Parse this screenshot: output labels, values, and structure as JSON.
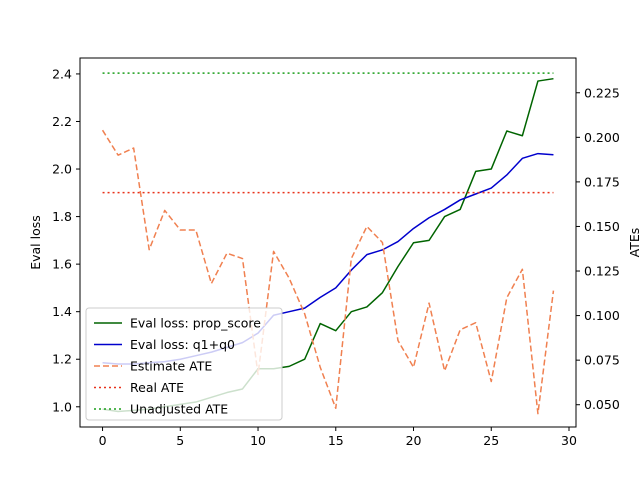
{
  "chart_data": {
    "type": "line",
    "x": [
      0,
      1,
      2,
      3,
      4,
      5,
      6,
      7,
      8,
      9,
      10,
      11,
      12,
      13,
      14,
      15,
      16,
      17,
      18,
      19,
      20,
      21,
      22,
      23,
      24,
      25,
      26,
      27,
      28,
      29
    ],
    "axes": {
      "x": {
        "ticks": [
          0,
          5,
          10,
          15,
          20,
          25,
          30
        ],
        "lim": [
          -1.45,
          30.45
        ]
      },
      "y_left": {
        "label": "Eval loss",
        "ticks": [
          "1.0",
          "1.2",
          "1.4",
          "1.6",
          "1.8",
          "2.0",
          "2.2",
          "2.4"
        ],
        "lim": [
          0.915,
          2.467
        ]
      },
      "y_right": {
        "label": "ATEs",
        "ticks": [
          "0.050",
          "0.075",
          "0.100",
          "0.125",
          "0.150",
          "0.175",
          "0.200",
          "0.225"
        ],
        "lim": [
          0.0375,
          0.2445
        ]
      }
    },
    "series": [
      {
        "name": "Eval loss: prop_score",
        "axis": "left",
        "color": "#006400",
        "dash": "solid",
        "values": [
          0.99,
          0.98,
          0.985,
          0.99,
          1.0,
          1.01,
          1.02,
          1.04,
          1.06,
          1.075,
          1.16,
          1.16,
          1.17,
          1.2,
          1.35,
          1.32,
          1.4,
          1.42,
          1.48,
          1.59,
          1.69,
          1.7,
          1.8,
          1.83,
          1.99,
          2.0,
          2.16,
          2.14,
          2.37,
          2.38
        ]
      },
      {
        "name": "Eval loss: q1+q0",
        "axis": "left",
        "color": "#0000cd",
        "dash": "solid",
        "values": [
          1.185,
          1.18,
          1.18,
          1.185,
          1.19,
          1.2,
          1.215,
          1.23,
          1.25,
          1.27,
          1.31,
          1.385,
          1.4,
          1.415,
          1.46,
          1.5,
          1.575,
          1.64,
          1.66,
          1.695,
          1.75,
          1.795,
          1.83,
          1.87,
          1.895,
          1.92,
          1.975,
          2.045,
          2.065,
          2.06
        ]
      },
      {
        "name": "Estimate ATE",
        "axis": "right",
        "color": "#f08050",
        "dash": "dashed",
        "values": [
          0.204,
          0.19,
          0.194,
          0.137,
          0.159,
          0.148,
          0.148,
          0.118,
          0.135,
          0.132,
          0.067,
          0.136,
          0.121,
          0.101,
          0.071,
          0.048,
          0.132,
          0.15,
          0.141,
          0.086,
          0.071,
          0.107,
          0.069,
          0.092,
          0.096,
          0.063,
          0.11,
          0.126,
          0.045,
          0.114
        ]
      },
      {
        "name": "Real ATE",
        "axis": "right",
        "color": "#e8311a",
        "dash": "dotted",
        "values": [
          0.169,
          0.169,
          0.169,
          0.169,
          0.169,
          0.169,
          0.169,
          0.169,
          0.169,
          0.169,
          0.169,
          0.169,
          0.169,
          0.169,
          0.169,
          0.169,
          0.169,
          0.169,
          0.169,
          0.169,
          0.169,
          0.169,
          0.169,
          0.169,
          0.169,
          0.169,
          0.169,
          0.169,
          0.169,
          0.169
        ]
      },
      {
        "name": "Unadjusted ATE",
        "axis": "right",
        "color": "#1a9e1a",
        "dash": "dotted",
        "values": [
          0.236,
          0.236,
          0.236,
          0.236,
          0.236,
          0.236,
          0.236,
          0.236,
          0.236,
          0.236,
          0.236,
          0.236,
          0.236,
          0.236,
          0.236,
          0.236,
          0.236,
          0.236,
          0.236,
          0.236,
          0.236,
          0.236,
          0.236,
          0.236,
          0.236,
          0.236,
          0.236,
          0.236,
          0.236,
          0.236
        ]
      }
    ],
    "legend": {
      "placement": "lower left",
      "entries": [
        "Eval loss: prop_score",
        "Eval loss: q1+q0",
        "Estimate ATE",
        "Real ATE",
        "Unadjusted ATE"
      ]
    },
    "grid": false
  }
}
